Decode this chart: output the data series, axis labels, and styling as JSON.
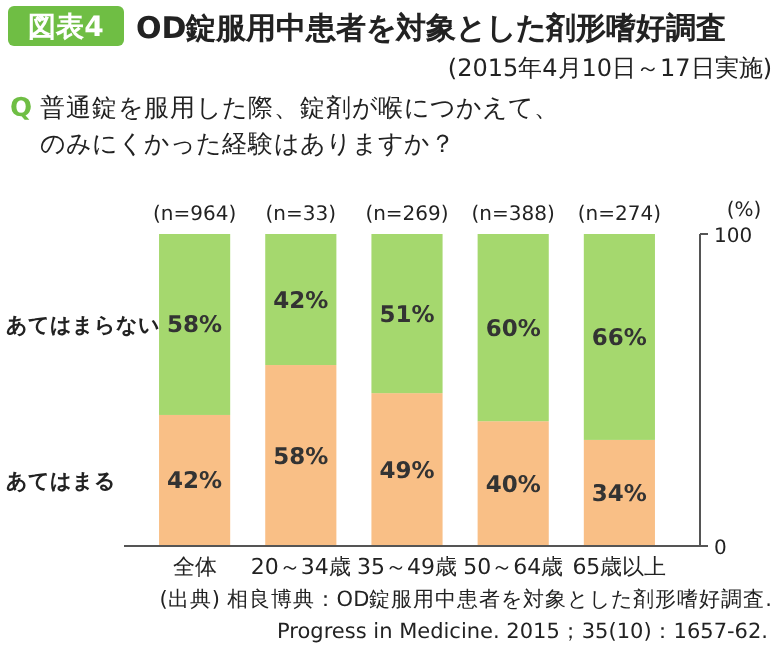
{
  "chart_data": {
    "type": "bar",
    "stacked": true,
    "title": "図表4 OD錠服用中患者を対象とした剤形嗜好調査",
    "subtitle": "(2015年4月10日～17日実施)",
    "categories": [
      "全体",
      "20～34歳",
      "35～49歳",
      "50～64歳",
      "65歳以上"
    ],
    "series": [
      {
        "name": "あてはまる",
        "color": "#f9bf86",
        "values": [
          42,
          58,
          49,
          40,
          34
        ],
        "value_labels": [
          "42%",
          "58%",
          "49%",
          "40%",
          "34%"
        ]
      },
      {
        "name": "あてはまらない",
        "color": "#a5d86e",
        "values": [
          58,
          42,
          51,
          60,
          66
        ],
        "value_labels": [
          "58%",
          "42%",
          "51%",
          "60%",
          "66%"
        ]
      }
    ],
    "ylim": [
      0,
      100
    ],
    "yticks": [
      0,
      100
    ],
    "ylabel": "(%)",
    "legend": "left",
    "annotations": [
      "Q 普通錠を服用した際、錠剤が喉につかえて、のみにくかった経験はありますか？",
      {
        "text": "(n=964)",
        "x": "全体",
        "y": 100
      },
      {
        "text": "(n=33)",
        "x": "20～34歳",
        "y": 100
      },
      {
        "text": "(n=269)",
        "x": "35～49歳",
        "y": 100
      },
      {
        "text": "(n=388)",
        "x": "50～64歳",
        "y": 100
      },
      {
        "text": "(n=274)",
        "x": "65歳以上",
        "y": 100
      },
      "(出典) 相良博典：OD錠服用中患者を対象とした剤形嗜好調査. Progress in Medicine. 2015；35(10)：1657-62."
    ]
  }
}
